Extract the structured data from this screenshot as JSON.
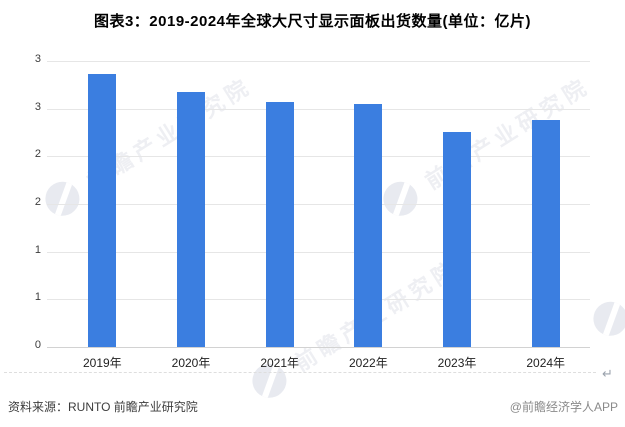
{
  "title": "图表3：2019-2024年全球大尺寸显示面板出货数量(单位：亿片)",
  "chart_data": {
    "type": "bar",
    "title": "图表3：2019-2024年全球大尺寸显示面板出货数量(单位：亿片)",
    "unit": "亿片",
    "categories": [
      "2019年",
      "2020年",
      "2021年",
      "2022年",
      "2023年",
      "2024年"
    ],
    "values": [
      2.86,
      2.68,
      2.57,
      2.55,
      2.26,
      2.38
    ],
    "xlabel": "",
    "ylabel": "",
    "ylim": [
      0,
      3
    ],
    "ytick_interval": 0.5,
    "ytick_labels_top_to_bottom": [
      "3",
      "3",
      "2",
      "2",
      "1",
      "1",
      "0"
    ],
    "grid": true,
    "legend": false,
    "bar_color": "#3b7ee0",
    "gridline_color": "#e6e6e6",
    "axis_line_color": "#d2d2d2"
  },
  "watermark": {
    "text": "前瞻产业研究院"
  },
  "separator": {
    "return_mark": "↵"
  },
  "footer": {
    "source": "资料来源：RUNTO 前瞻产业研究院",
    "credit": "@前瞻经济学人APP"
  }
}
